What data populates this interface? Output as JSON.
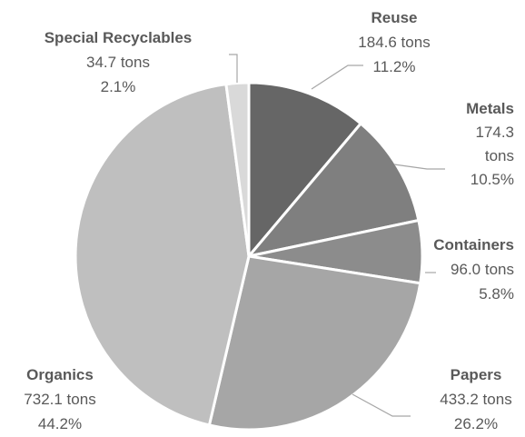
{
  "chart_data": {
    "type": "pie",
    "title": "",
    "slices": [
      {
        "name": "Reuse",
        "tons": 184.6,
        "tons_label": "184.6 tons",
        "percent": 11.2,
        "percent_label": "11.2%",
        "color": "#666666"
      },
      {
        "name": "Metals",
        "tons": 174.3,
        "tons_label": "174.3 tons",
        "percent": 10.5,
        "percent_label": "10.5%",
        "color": "#7f7f7f"
      },
      {
        "name": "Containers",
        "tons": 96.0,
        "tons_label": "96.0 tons",
        "percent": 5.8,
        "percent_label": "5.8%",
        "color": "#8c8c8c"
      },
      {
        "name": "Papers",
        "tons": 433.2,
        "tons_label": "433.2 tons",
        "percent": 26.2,
        "percent_label": "26.2%",
        "color": "#a6a6a6"
      },
      {
        "name": "Organics",
        "tons": 732.1,
        "tons_label": "732.1 tons",
        "percent": 44.2,
        "percent_label": "44.2%",
        "color": "#bfbfbf"
      },
      {
        "name": "Special Recyclables",
        "tons": 34.7,
        "tons_label": "34.7 tons",
        "percent": 2.1,
        "percent_label": "2.1%",
        "color": "#d9d9d9"
      }
    ]
  }
}
